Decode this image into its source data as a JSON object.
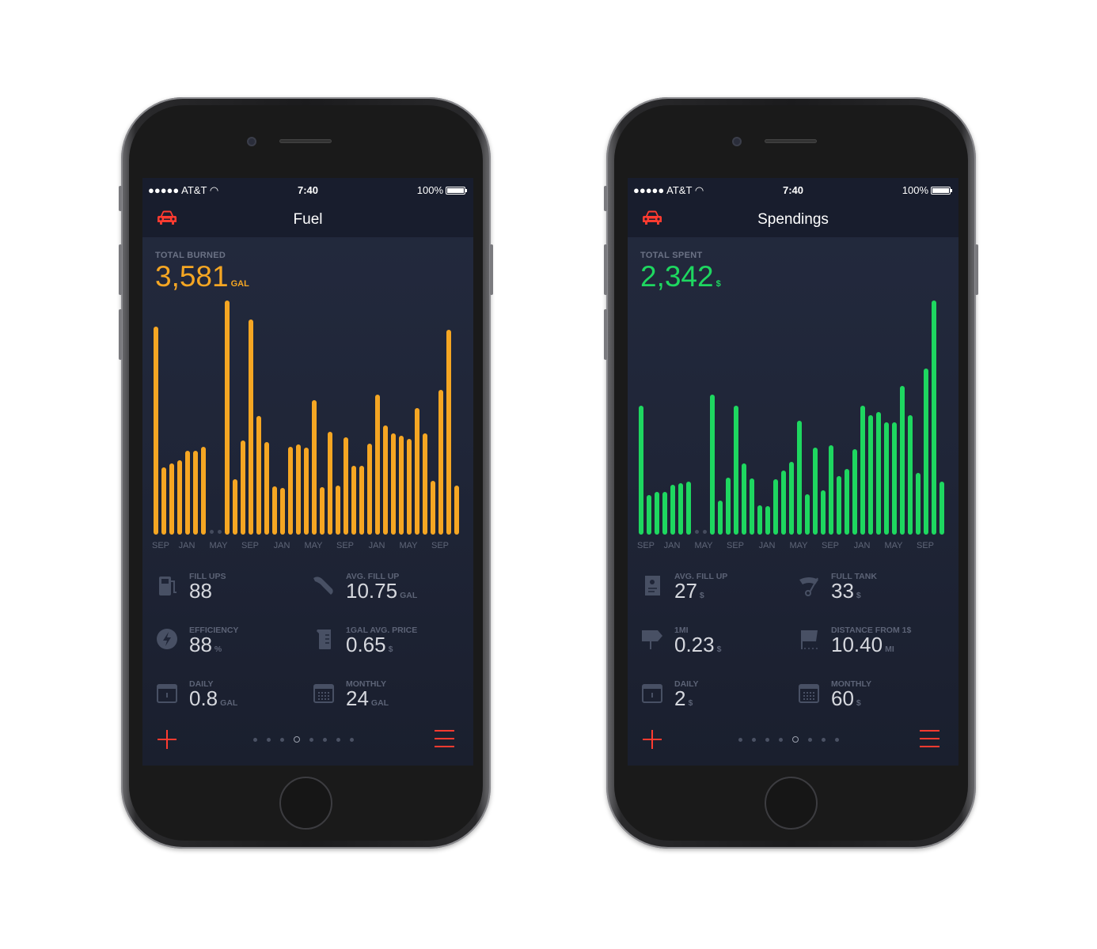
{
  "phones": [
    {
      "status": {
        "carrier": "●●●●● AT&T",
        "time": "7:40",
        "battery": "100%"
      },
      "title": "Fuel",
      "total_label": "TOTAL BURNED",
      "total_value": "3,581",
      "total_unit": "GAL",
      "accent": "#f5a623",
      "stats": [
        {
          "icon": "fuel-pump-icon",
          "label": "FILL UPS",
          "value": "88",
          "unit": ""
        },
        {
          "icon": "fuel-nozzle-icon",
          "label": "AVG. FILL UP",
          "value": "10.75",
          "unit": "GAL"
        },
        {
          "icon": "lightning-icon",
          "label": "EFFICIENCY",
          "value": "88",
          "unit": "%"
        },
        {
          "icon": "beaker-icon",
          "label": "1GAL AVG. PRICE",
          "value": "0.65",
          "unit": "$"
        },
        {
          "icon": "calendar-day-icon",
          "label": "DAILY",
          "value": "0.8",
          "unit": "GAL"
        },
        {
          "icon": "calendar-month-icon",
          "label": "MONTHLY",
          "value": "24",
          "unit": "GAL"
        }
      ],
      "pager": {
        "count": 8,
        "active": 3
      }
    },
    {
      "status": {
        "carrier": "●●●●● AT&T",
        "time": "7:40",
        "battery": "100%"
      },
      "title": "Spendings",
      "total_label": "TOTAL SPENT",
      "total_value": "2,342",
      "total_unit": "$",
      "accent": "#1ed760",
      "stats": [
        {
          "icon": "receipt-icon",
          "label": "AVG. FILL UP",
          "value": "27",
          "unit": "$"
        },
        {
          "icon": "gauge-icon",
          "label": "FULL TANK",
          "value": "33",
          "unit": "$"
        },
        {
          "icon": "signpost-icon",
          "label": "1MI",
          "value": "0.23",
          "unit": "$"
        },
        {
          "icon": "flag-icon",
          "label": "DISTANCE FROM 1$",
          "value": "10.40",
          "unit": "MI"
        },
        {
          "icon": "calendar-day-icon",
          "label": "DAILY",
          "value": "2",
          "unit": "$"
        },
        {
          "icon": "calendar-month-icon",
          "label": "MONTHLY",
          "value": "60",
          "unit": "$"
        }
      ],
      "pager": {
        "count": 8,
        "active": 4
      }
    }
  ],
  "chart_data": [
    {
      "type": "bar",
      "title": "",
      "xlabel": "",
      "ylabel": "",
      "tick_labels": [
        "SEP",
        "JAN",
        "MAY",
        "SEP",
        "JAN",
        "MAY",
        "SEP",
        "JAN",
        "MAY",
        "SEP"
      ],
      "color": "#f5a623",
      "ylim": [
        0,
        100
      ],
      "grid": false,
      "values": [
        88.7,
        28.8,
        30.4,
        31.6,
        35.8,
        35.8,
        37.5,
        null,
        null,
        100,
        23.8,
        40.1,
        91.8,
        50.7,
        39.6,
        20.6,
        19.8,
        37.6,
        38.4,
        37.0,
        57.4,
        20.3,
        44.0,
        21.1,
        41.4,
        29.3,
        29.5,
        39.0,
        59.9,
        46.7,
        43.4,
        42.3,
        41.0,
        53.9,
        43.2,
        23.0,
        61.9,
        87.4,
        20.8
      ]
    },
    {
      "type": "bar",
      "title": "",
      "xlabel": "",
      "ylabel": "",
      "tick_labels": [
        "SEP",
        "JAN",
        "MAY",
        "SEP",
        "JAN",
        "MAY",
        "SEP",
        "JAN",
        "MAY",
        "SEP"
      ],
      "color": "#1ed760",
      "ylim": [
        0,
        100
      ],
      "grid": false,
      "values": [
        55.1,
        16.9,
        18.2,
        18.4,
        21.2,
        22.0,
        22.7,
        null,
        null,
        59.7,
        14.5,
        24.3,
        54.9,
        30.5,
        24.0,
        12.4,
        12.1,
        23.7,
        27.2,
        31.0,
        48.5,
        17.2,
        37.3,
        19.0,
        38.3,
        25.1,
        27.9,
        36.6,
        55.0,
        51.0,
        52.5,
        48.1,
        48.0,
        63.5,
        51.0,
        26.2,
        70.8,
        100,
        22.8
      ]
    }
  ]
}
